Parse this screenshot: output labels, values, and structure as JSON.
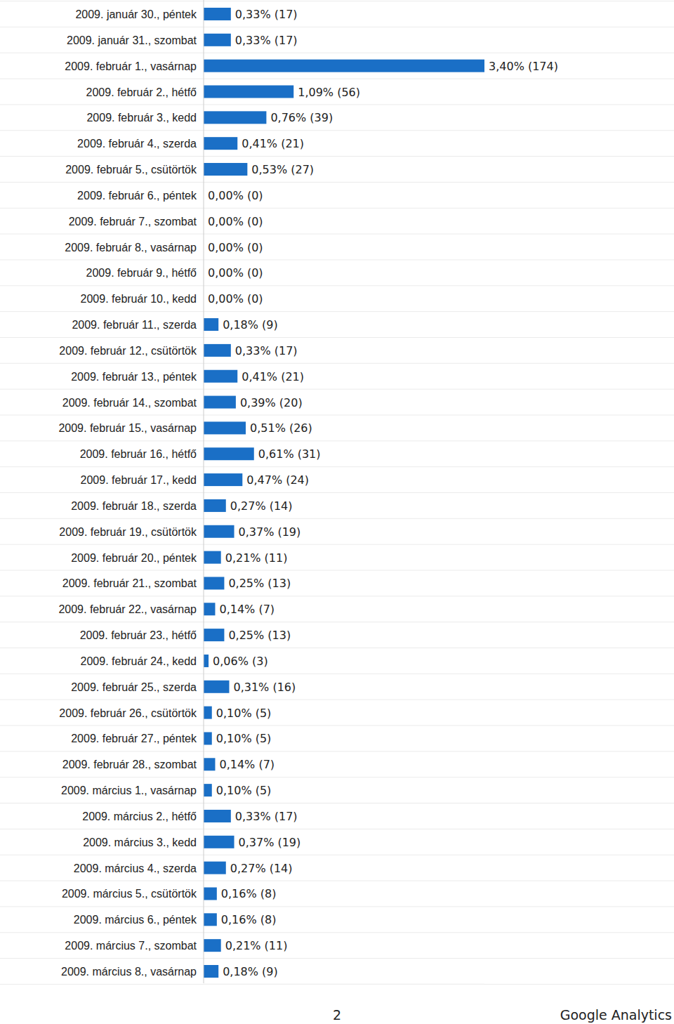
{
  "chart_data": {
    "type": "bar",
    "orientation": "horizontal",
    "data_labels": true,
    "tick_labels": "y",
    "color": "#1a6fc6",
    "categories": [
      "2009. január 30., péntek",
      "2009. január 31., szombat",
      "2009. február 1., vasárnap",
      "2009. február 2., hétfő",
      "2009. február 3., kedd",
      "2009. február 4., szerda",
      "2009. február 5., csütörtök",
      "2009. február 6., péntek",
      "2009. február 7., szombat",
      "2009. február 8., vasárnap",
      "2009. február 9., hétfő",
      "2009. február 10., kedd",
      "2009. február 11., szerda",
      "2009. február 12., csütörtök",
      "2009. február 13., péntek",
      "2009. február 14., szombat",
      "2009. február 15., vasárnap",
      "2009. február 16., hétfő",
      "2009. február 17., kedd",
      "2009. február 18., szerda",
      "2009. február 19., csütörtök",
      "2009. február 20., péntek",
      "2009. február 21., szombat",
      "2009. február 22., vasárnap",
      "2009. február 23., hétfő",
      "2009. február 24., kedd",
      "2009. február 25., szerda",
      "2009. február 26., csütörtök",
      "2009. február 27., péntek",
      "2009. február 28., szombat",
      "2009. március 1., vasárnap",
      "2009. március 2., hétfő",
      "2009. március 3., kedd",
      "2009. március 4., szerda",
      "2009. március 5., csütörtök",
      "2009. március 6., péntek",
      "2009. március 7., szombat",
      "2009. március 8., vasárnap"
    ],
    "values": [
      0.33,
      0.33,
      3.4,
      1.09,
      0.76,
      0.41,
      0.53,
      0,
      0,
      0,
      0,
      0,
      0.18,
      0.33,
      0.41,
      0.39,
      0.51,
      0.61,
      0.47,
      0.27,
      0.37,
      0.21,
      0.25,
      0.14,
      0.25,
      0.06,
      0.31,
      0.1,
      0.1,
      0.14,
      0.1,
      0.33,
      0.37,
      0.27,
      0.16,
      0.16,
      0.21,
      0.18
    ],
    "value_labels": [
      "0,33% (17)",
      "0,33% (17)",
      "3,40% (174)",
      "1,09% (56)",
      "0,76% (39)",
      "0,41% (21)",
      "0,53% (27)",
      "0,00% (0)",
      "0,00% (0)",
      "0,00% (0)",
      "0,00% (0)",
      "0,00% (0)",
      "0,18% (9)",
      "0,33% (17)",
      "0,41% (21)",
      "0,39% (20)",
      "0,51% (26)",
      "0,61% (31)",
      "0,47% (24)",
      "0,27% (14)",
      "0,37% (19)",
      "0,21% (11)",
      "0,25% (13)",
      "0,14% (7)",
      "0,25% (13)",
      "0,06% (3)",
      "0,31% (16)",
      "0,10% (5)",
      "0,10% (5)",
      "0,14% (7)",
      "0,10% (5)",
      "0,33% (17)",
      "0,37% (19)",
      "0,27% (14)",
      "0,16% (8)",
      "0,16% (8)",
      "0,21% (11)",
      "0,18% (9)"
    ],
    "xlim": [
      0,
      3.4
    ]
  },
  "footer": {
    "page": "2",
    "brand": "Google Analytics"
  }
}
